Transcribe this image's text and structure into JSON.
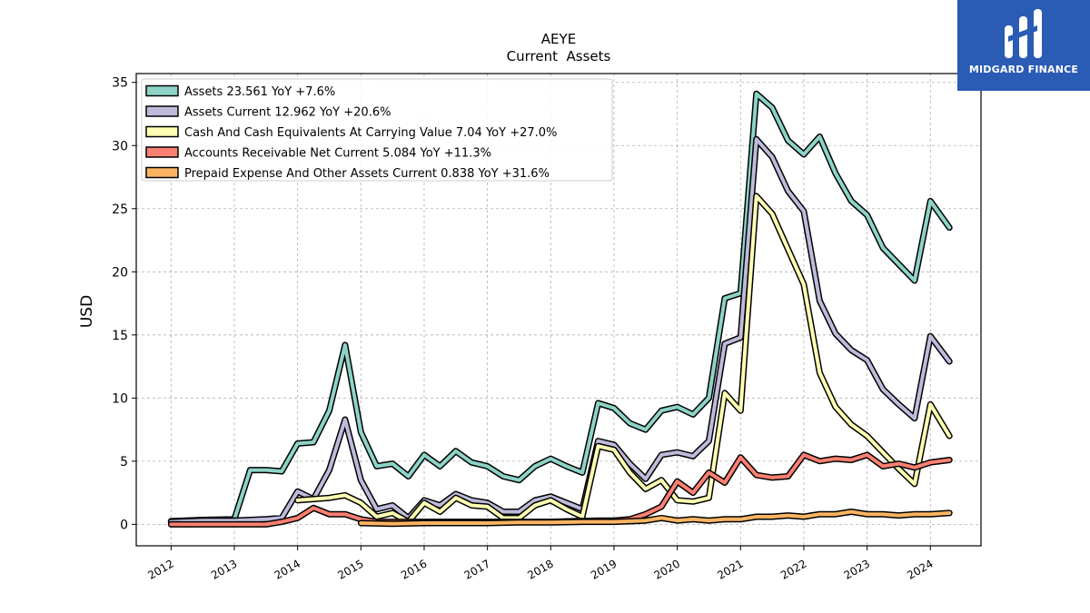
{
  "chart_data": {
    "type": "line",
    "title": "AEYE",
    "subtitle": "Current  Assets",
    "xlabel": "",
    "ylabel": "USD",
    "ylim": [
      -1.7,
      35.7
    ],
    "yticks": [
      0,
      5,
      10,
      15,
      20,
      25,
      30,
      35
    ],
    "xticks": [
      "2012",
      "2013",
      "2014",
      "2015",
      "2016",
      "2017",
      "2018",
      "2019",
      "2020",
      "2021",
      "2022",
      "2023",
      "2024"
    ],
    "grid": true,
    "legend_position": "top-left",
    "series": [
      {
        "name": "Assets  23.561 YoY +7.6%",
        "color": "#8dd3c7",
        "points": [
          [
            2012.0,
            0.25
          ],
          [
            2012.5,
            0.35
          ],
          [
            2013.0,
            0.4
          ],
          [
            2013.25,
            4.3
          ],
          [
            2013.5,
            4.3
          ],
          [
            2013.75,
            4.2
          ],
          [
            2014.0,
            6.4
          ],
          [
            2014.25,
            6.5
          ],
          [
            2014.5,
            9.0
          ],
          [
            2014.75,
            14.2
          ],
          [
            2015.0,
            7.3
          ],
          [
            2015.25,
            4.6
          ],
          [
            2015.5,
            4.8
          ],
          [
            2015.75,
            3.8
          ],
          [
            2016.0,
            5.5
          ],
          [
            2016.25,
            4.6
          ],
          [
            2016.5,
            5.8
          ],
          [
            2016.75,
            4.9
          ],
          [
            2017.0,
            4.6
          ],
          [
            2017.25,
            3.8
          ],
          [
            2017.5,
            3.5
          ],
          [
            2017.75,
            4.6
          ],
          [
            2018.0,
            5.2
          ],
          [
            2018.25,
            4.6
          ],
          [
            2018.5,
            4.1
          ],
          [
            2018.75,
            9.6
          ],
          [
            2019.0,
            9.2
          ],
          [
            2019.25,
            8.0
          ],
          [
            2019.5,
            7.5
          ],
          [
            2019.75,
            9.0
          ],
          [
            2020.0,
            9.3
          ],
          [
            2020.25,
            8.7
          ],
          [
            2020.5,
            10.0
          ],
          [
            2020.75,
            17.9
          ],
          [
            2021.0,
            18.3
          ],
          [
            2021.25,
            34.1
          ],
          [
            2021.5,
            33.0
          ],
          [
            2021.75,
            30.4
          ],
          [
            2022.0,
            29.3
          ],
          [
            2022.25,
            30.7
          ],
          [
            2022.5,
            27.8
          ],
          [
            2022.75,
            25.6
          ],
          [
            2023.0,
            24.5
          ],
          [
            2023.25,
            21.9
          ],
          [
            2023.5,
            20.6
          ],
          [
            2023.75,
            19.3
          ],
          [
            2024.0,
            25.6
          ],
          [
            2024.3,
            23.5
          ]
        ]
      },
      {
        "name": "Assets Current  12.962 YoY +20.6%",
        "color": "#bebada",
        "points": [
          [
            2012.0,
            0.2
          ],
          [
            2012.5,
            0.3
          ],
          [
            2013.0,
            0.3
          ],
          [
            2013.5,
            0.4
          ],
          [
            2013.75,
            0.5
          ],
          [
            2014.0,
            2.6
          ],
          [
            2014.25,
            2.0
          ],
          [
            2014.5,
            4.3
          ],
          [
            2014.75,
            8.3
          ],
          [
            2015.0,
            3.5
          ],
          [
            2015.25,
            1.2
          ],
          [
            2015.5,
            1.5
          ],
          [
            2015.75,
            0.5
          ],
          [
            2016.0,
            1.9
          ],
          [
            2016.25,
            1.5
          ],
          [
            2016.5,
            2.4
          ],
          [
            2016.75,
            1.9
          ],
          [
            2017.0,
            1.7
          ],
          [
            2017.25,
            1.0
          ],
          [
            2017.5,
            1.0
          ],
          [
            2017.75,
            1.9
          ],
          [
            2018.0,
            2.2
          ],
          [
            2018.25,
            1.7
          ],
          [
            2018.5,
            1.2
          ],
          [
            2018.75,
            6.6
          ],
          [
            2019.0,
            6.3
          ],
          [
            2019.25,
            4.8
          ],
          [
            2019.5,
            3.6
          ],
          [
            2019.75,
            5.5
          ],
          [
            2020.0,
            5.7
          ],
          [
            2020.25,
            5.4
          ],
          [
            2020.5,
            6.6
          ],
          [
            2020.75,
            14.3
          ],
          [
            2021.0,
            14.8
          ],
          [
            2021.25,
            30.5
          ],
          [
            2021.5,
            29.1
          ],
          [
            2021.75,
            26.4
          ],
          [
            2022.0,
            24.8
          ],
          [
            2022.25,
            17.7
          ],
          [
            2022.5,
            15.1
          ],
          [
            2022.75,
            13.8
          ],
          [
            2023.0,
            13.0
          ],
          [
            2023.25,
            10.7
          ],
          [
            2023.5,
            9.5
          ],
          [
            2023.75,
            8.4
          ],
          [
            2024.0,
            14.9
          ],
          [
            2024.3,
            12.9
          ]
        ]
      },
      {
        "name": "Cash And Cash Equivalents At Carrying Value  7.04 YoY +27.0%",
        "color": "#ffffb3",
        "points": [
          [
            2014.0,
            1.9
          ],
          [
            2014.5,
            2.1
          ],
          [
            2014.75,
            2.3
          ],
          [
            2015.0,
            1.7
          ],
          [
            2015.25,
            0.6
          ],
          [
            2015.5,
            0.9
          ],
          [
            2015.75,
            0.2
          ],
          [
            2016.0,
            1.7
          ],
          [
            2016.25,
            1.0
          ],
          [
            2016.5,
            2.1
          ],
          [
            2016.75,
            1.5
          ],
          [
            2017.0,
            1.4
          ],
          [
            2017.25,
            0.5
          ],
          [
            2017.5,
            0.5
          ],
          [
            2017.75,
            1.5
          ],
          [
            2018.0,
            1.9
          ],
          [
            2018.25,
            1.2
          ],
          [
            2018.5,
            0.6
          ],
          [
            2018.75,
            6.2
          ],
          [
            2019.0,
            5.9
          ],
          [
            2019.25,
            4.1
          ],
          [
            2019.5,
            2.8
          ],
          [
            2019.75,
            3.5
          ],
          [
            2020.0,
            1.9
          ],
          [
            2020.25,
            1.8
          ],
          [
            2020.5,
            2.1
          ],
          [
            2020.75,
            10.4
          ],
          [
            2021.0,
            9.0
          ],
          [
            2021.25,
            26.0
          ],
          [
            2021.5,
            24.6
          ],
          [
            2021.75,
            21.8
          ],
          [
            2022.0,
            19.0
          ],
          [
            2022.25,
            12.0
          ],
          [
            2022.5,
            9.3
          ],
          [
            2022.75,
            7.9
          ],
          [
            2023.0,
            7.0
          ],
          [
            2023.25,
            5.7
          ],
          [
            2023.5,
            4.4
          ],
          [
            2023.75,
            3.2
          ],
          [
            2024.0,
            9.5
          ],
          [
            2024.3,
            7.0
          ]
        ]
      },
      {
        "name": "Accounts Receivable Net Current  5.084 YoY +11.3%",
        "color": "#fb8072",
        "points": [
          [
            2012.0,
            0.0
          ],
          [
            2012.5,
            0.0
          ],
          [
            2013.0,
            0.0
          ],
          [
            2013.5,
            0.0
          ],
          [
            2013.75,
            0.2
          ],
          [
            2014.0,
            0.5
          ],
          [
            2014.25,
            1.3
          ],
          [
            2014.5,
            0.8
          ],
          [
            2014.75,
            0.8
          ],
          [
            2015.0,
            0.4
          ],
          [
            2015.25,
            0.2
          ],
          [
            2015.5,
            0.2
          ],
          [
            2016.0,
            0.2
          ],
          [
            2017.0,
            0.2
          ],
          [
            2018.0,
            0.2
          ],
          [
            2018.75,
            0.3
          ],
          [
            2019.0,
            0.3
          ],
          [
            2019.25,
            0.4
          ],
          [
            2019.5,
            0.8
          ],
          [
            2019.75,
            1.4
          ],
          [
            2020.0,
            3.4
          ],
          [
            2020.25,
            2.5
          ],
          [
            2020.5,
            4.1
          ],
          [
            2020.75,
            3.3
          ],
          [
            2021.0,
            5.3
          ],
          [
            2021.25,
            3.9
          ],
          [
            2021.5,
            3.7
          ],
          [
            2021.75,
            3.8
          ],
          [
            2022.0,
            5.5
          ],
          [
            2022.25,
            5.0
          ],
          [
            2022.5,
            5.2
          ],
          [
            2022.75,
            5.1
          ],
          [
            2023.0,
            5.5
          ],
          [
            2023.25,
            4.6
          ],
          [
            2023.5,
            4.8
          ],
          [
            2023.75,
            4.5
          ],
          [
            2024.0,
            4.9
          ],
          [
            2024.3,
            5.1
          ]
        ]
      },
      {
        "name": "Prepaid Expense And Other Assets Current  0.838 YoY +31.6%",
        "color": "#fdb462",
        "points": [
          [
            2015.0,
            0.1
          ],
          [
            2015.5,
            0.05
          ],
          [
            2016.0,
            0.1
          ],
          [
            2016.5,
            0.1
          ],
          [
            2017.0,
            0.1
          ],
          [
            2017.5,
            0.15
          ],
          [
            2018.0,
            0.15
          ],
          [
            2018.5,
            0.2
          ],
          [
            2019.0,
            0.2
          ],
          [
            2019.5,
            0.3
          ],
          [
            2019.75,
            0.5
          ],
          [
            2020.0,
            0.3
          ],
          [
            2020.25,
            0.4
          ],
          [
            2020.5,
            0.3
          ],
          [
            2020.75,
            0.4
          ],
          [
            2021.0,
            0.4
          ],
          [
            2021.25,
            0.6
          ],
          [
            2021.5,
            0.6
          ],
          [
            2021.75,
            0.7
          ],
          [
            2022.0,
            0.6
          ],
          [
            2022.25,
            0.8
          ],
          [
            2022.5,
            0.8
          ],
          [
            2022.75,
            1.0
          ],
          [
            2023.0,
            0.8
          ],
          [
            2023.25,
            0.8
          ],
          [
            2023.5,
            0.7
          ],
          [
            2023.75,
            0.8
          ],
          [
            2024.0,
            0.8
          ],
          [
            2024.3,
            0.9
          ]
        ]
      }
    ]
  },
  "branding": {
    "logo_text": "MIDGARD FINANCE"
  }
}
